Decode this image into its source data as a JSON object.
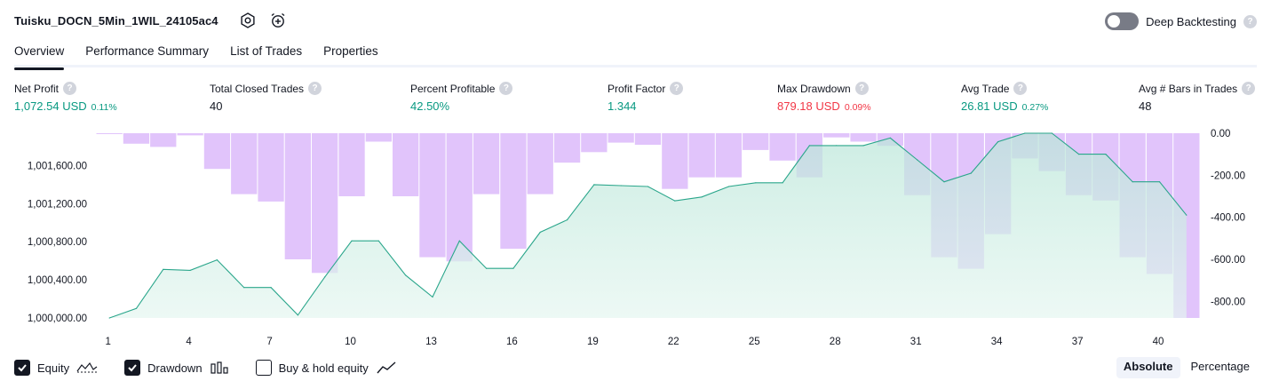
{
  "header": {
    "title": "Tuisku_DOCN_5Min_1WIL_24105ac4",
    "icons": [
      "settings-icon",
      "alarm-add-icon"
    ],
    "deep_backtesting_label": "Deep Backtesting",
    "deep_backtesting_enabled": false,
    "help_glyph": "?"
  },
  "tabs": [
    {
      "label": "Overview",
      "active": true
    },
    {
      "label": "Performance Summary",
      "active": false
    },
    {
      "label": "List of Trades",
      "active": false
    },
    {
      "label": "Properties",
      "active": false
    }
  ],
  "metrics": [
    {
      "label": "Net Profit",
      "value": "1,072.54 USD",
      "sub": "0.11%",
      "tone": "pos"
    },
    {
      "label": "Total Closed Trades",
      "value": "40",
      "sub": "",
      "tone": "plain"
    },
    {
      "label": "Percent Profitable",
      "value": "42.50%",
      "sub": "",
      "tone": "pos"
    },
    {
      "label": "Profit Factor",
      "value": "1.344",
      "sub": "",
      "tone": "pos"
    },
    {
      "label": "Max Drawdown",
      "value": "879.18 USD",
      "sub": "0.09%",
      "tone": "neg"
    },
    {
      "label": "Avg Trade",
      "value": "26.81 USD",
      "sub": "0.27%",
      "tone": "pos"
    },
    {
      "label": "Avg # Bars in Trades",
      "value": "48",
      "sub": "",
      "tone": "plain"
    }
  ],
  "colors": {
    "positive": "#089981",
    "negative": "#f23645",
    "equity_line": "#2aa68b",
    "equity_fill": "#d4efe6",
    "drawdown_bar": "#e1c4fb",
    "text": "#131722"
  },
  "chart_data": {
    "type": "area",
    "x": [
      1,
      2,
      3,
      4,
      5,
      6,
      7,
      8,
      9,
      10,
      11,
      12,
      13,
      14,
      15,
      16,
      17,
      18,
      19,
      20,
      21,
      22,
      23,
      24,
      25,
      26,
      27,
      28,
      29,
      30,
      31,
      32,
      33,
      34,
      35,
      36,
      37,
      38,
      39,
      40,
      41
    ],
    "x_ticks": [
      1,
      4,
      7,
      10,
      13,
      16,
      19,
      22,
      25,
      28,
      31,
      34,
      37,
      40
    ],
    "series": [
      {
        "name": "Equity",
        "kind": "area",
        "axis": "left",
        "values": [
          1000000,
          1000100,
          1000510,
          1000500,
          1000610,
          1000320,
          1000320,
          1000030,
          1000430,
          1000810,
          1000810,
          1000450,
          1000220,
          1000810,
          1000520,
          1000520,
          1000900,
          1001030,
          1001400,
          1001390,
          1001380,
          1001230,
          1001270,
          1001380,
          1001420,
          1001420,
          1001810,
          1001810,
          1001810,
          1001890,
          1001660,
          1001430,
          1001520,
          1001850,
          1001940,
          1001940,
          1001720,
          1001720,
          1001430,
          1001430,
          1001080
        ]
      },
      {
        "name": "Drawdown",
        "kind": "bar",
        "axis": "right",
        "values": [
          -2,
          -50,
          -65,
          -10,
          -170,
          -290,
          -325,
          -600,
          -665,
          -300,
          -40,
          -300,
          -590,
          -610,
          -290,
          -550,
          -290,
          -140,
          -90,
          -45,
          -55,
          -265,
          -210,
          -210,
          -80,
          -130,
          -210,
          -20,
          -40,
          -60,
          -295,
          -590,
          -645,
          -480,
          -120,
          -180,
          -295,
          -320,
          -590,
          -670,
          -879.18
        ]
      }
    ],
    "ylim_left": [
      1000000,
      1001940
    ],
    "yticks_left": [
      "1,000,000.00",
      "1,000,400.00",
      "1,000,800.00",
      "1,001,200.00",
      "1,001,600.00"
    ],
    "ylim_right": [
      -879.18,
      0
    ],
    "yticks_right": [
      "0.00",
      "-200.00",
      "-400.00",
      "-600.00",
      "-800.00"
    ],
    "grid": false
  },
  "legend": {
    "items": [
      {
        "label": "Equity",
        "checked": true,
        "icon": "equity-line-icon"
      },
      {
        "label": "Drawdown",
        "checked": true,
        "icon": "drawdown-bars-icon"
      },
      {
        "label": "Buy & hold equity",
        "checked": false,
        "icon": "buy-hold-line-icon"
      }
    ],
    "modes": [
      {
        "label": "Absolute",
        "active": true
      },
      {
        "label": "Percentage",
        "active": false
      }
    ]
  }
}
